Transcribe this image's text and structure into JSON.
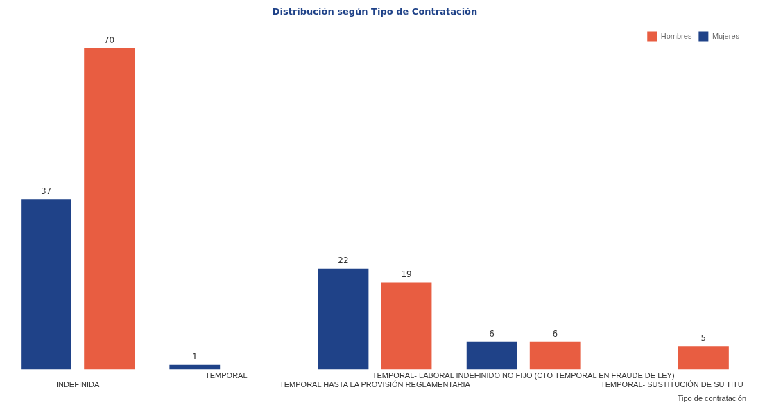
{
  "chart_data": {
    "type": "bar",
    "title": "Distribución según Tipo de Contratación",
    "xlabel": "Tipo de contratación",
    "categories": [
      "INDEFINIDA",
      "TEMPORAL",
      "TEMPORAL HASTA LA PROVISIÓN REGLAMENTARIA",
      "TEMPORAL- LABORAL INDEFINIDO NO FIJO (CTO TEMPORAL EN FRAUDE DE LEY)",
      "TEMPORAL- SUSTITUCIÓN DE SU TITU"
    ],
    "series": [
      {
        "name": "Mujeres",
        "color": "#1f4288",
        "values": [
          37,
          1,
          22,
          6,
          null
        ]
      },
      {
        "name": "Hombres",
        "color": "#e85d41",
        "values": [
          70,
          null,
          19,
          6,
          5
        ]
      }
    ],
    "data_labels": true,
    "legend": "top right",
    "grid": false,
    "tick_labels": "x"
  }
}
